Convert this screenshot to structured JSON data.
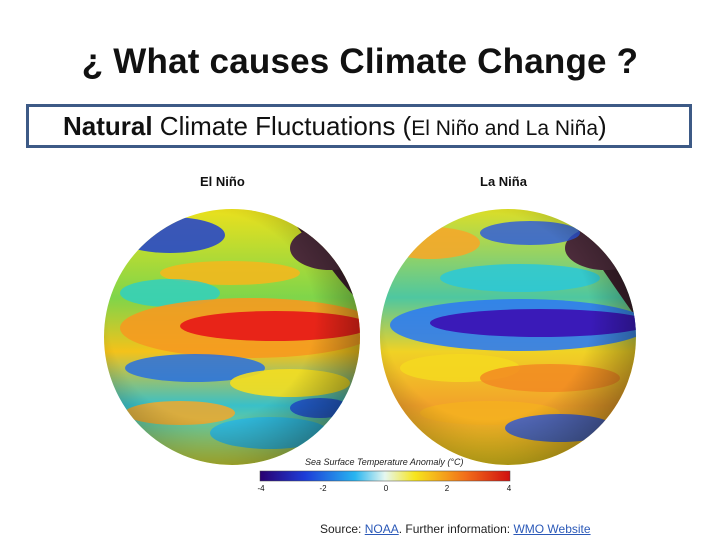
{
  "slide": {
    "title": "¿ What causes Climate Change ?",
    "banner": {
      "bold": "Natural",
      "text": " Climate Fluctuations (",
      "small": "El Niño and La Niña",
      "close": ")"
    }
  },
  "figure": {
    "left_label": "El Niño",
    "right_label": "La Niña",
    "legend": {
      "title": "Sea Surface Temperature Anomaly (°C)",
      "ticks": [
        "-4",
        "-2",
        "0",
        "2",
        "4"
      ]
    },
    "source": {
      "prefix": "Source: ",
      "link1": "NOAA",
      "middle": ". Further information: ",
      "link2": "WMO Website"
    }
  }
}
